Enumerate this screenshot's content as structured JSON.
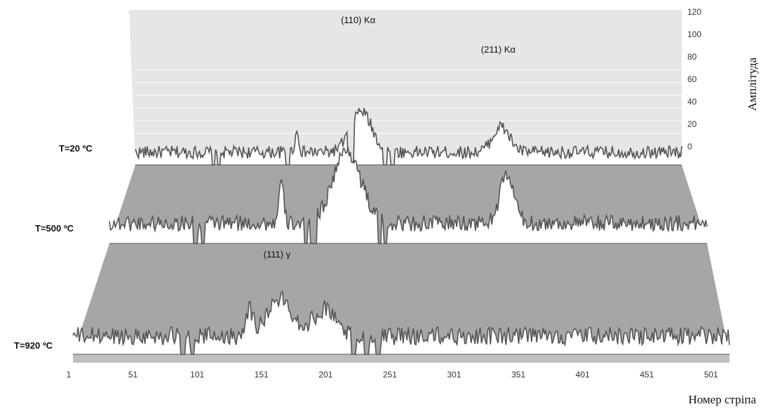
{
  "chart_data": {
    "type": "area",
    "title": "",
    "xlabel": "Номер стріпа",
    "zlabel": "Амплітуда",
    "x_ticks": [
      "1",
      "51",
      "101",
      "151",
      "201",
      "251",
      "301",
      "351",
      "401",
      "451",
      "501"
    ],
    "z_ticks": [
      "0",
      "20",
      "40",
      "60",
      "80",
      "100",
      "120"
    ],
    "x_range": [
      1,
      512
    ],
    "z_range": [
      0,
      120
    ],
    "series": [
      {
        "name": "T=20 ºC",
        "baseline": 20,
        "noise": 10,
        "dropouts": [
          [
            73,
            75
          ],
          [
            78,
            80
          ],
          [
            142,
            145
          ],
          [
            200,
            205
          ],
          [
            233,
            236
          ],
          [
            240,
            243
          ]
        ],
        "peaks": [
          {
            "center": 152,
            "height": 30,
            "width": 2
          },
          {
            "center": 212,
            "height": 65,
            "width": 10
          },
          {
            "center": 343,
            "height": 40,
            "width": 8
          }
        ],
        "annotations": [
          {
            "text": "(110) Kα",
            "x": 212
          },
          {
            "text": "(211) Kα",
            "x": 343
          }
        ]
      },
      {
        "name": "T=500 ºC",
        "baseline": 25,
        "noise": 10,
        "dropouts": [
          [
            73,
            76
          ],
          [
            80,
            82
          ],
          [
            168,
            170
          ],
          [
            173,
            175
          ],
          [
            176,
            178
          ],
          [
            231,
            233
          ],
          [
            236,
            238
          ]
        ],
        "peaks": [
          {
            "center": 148,
            "height": 50,
            "width": 2
          },
          {
            "center": 204,
            "height": 90,
            "width": 12
          },
          {
            "center": 341,
            "height": 60,
            "width": 6
          }
        ],
        "annotations": []
      },
      {
        "name": "T=920 ºC",
        "baseline": 20,
        "noise": 10,
        "dropouts": [
          [
            85,
            88
          ],
          [
            93,
            95
          ],
          [
            218,
            221
          ],
          [
            228,
            231
          ],
          [
            237,
            240
          ]
        ],
        "peaks": [
          {
            "center": 138,
            "height": 28,
            "width": 3
          },
          {
            "center": 162,
            "height": 40,
            "width": 10
          },
          {
            "center": 197,
            "height": 30,
            "width": 9
          }
        ],
        "annotations": [
          {
            "text": "(111) γ",
            "x": 162
          }
        ]
      }
    ],
    "colors": {
      "line": "#555555",
      "plane": "#a6a6a6",
      "back_wall": "#e6e6e6",
      "grid": "#ffffff",
      "floor": "#bfbfbf"
    }
  }
}
